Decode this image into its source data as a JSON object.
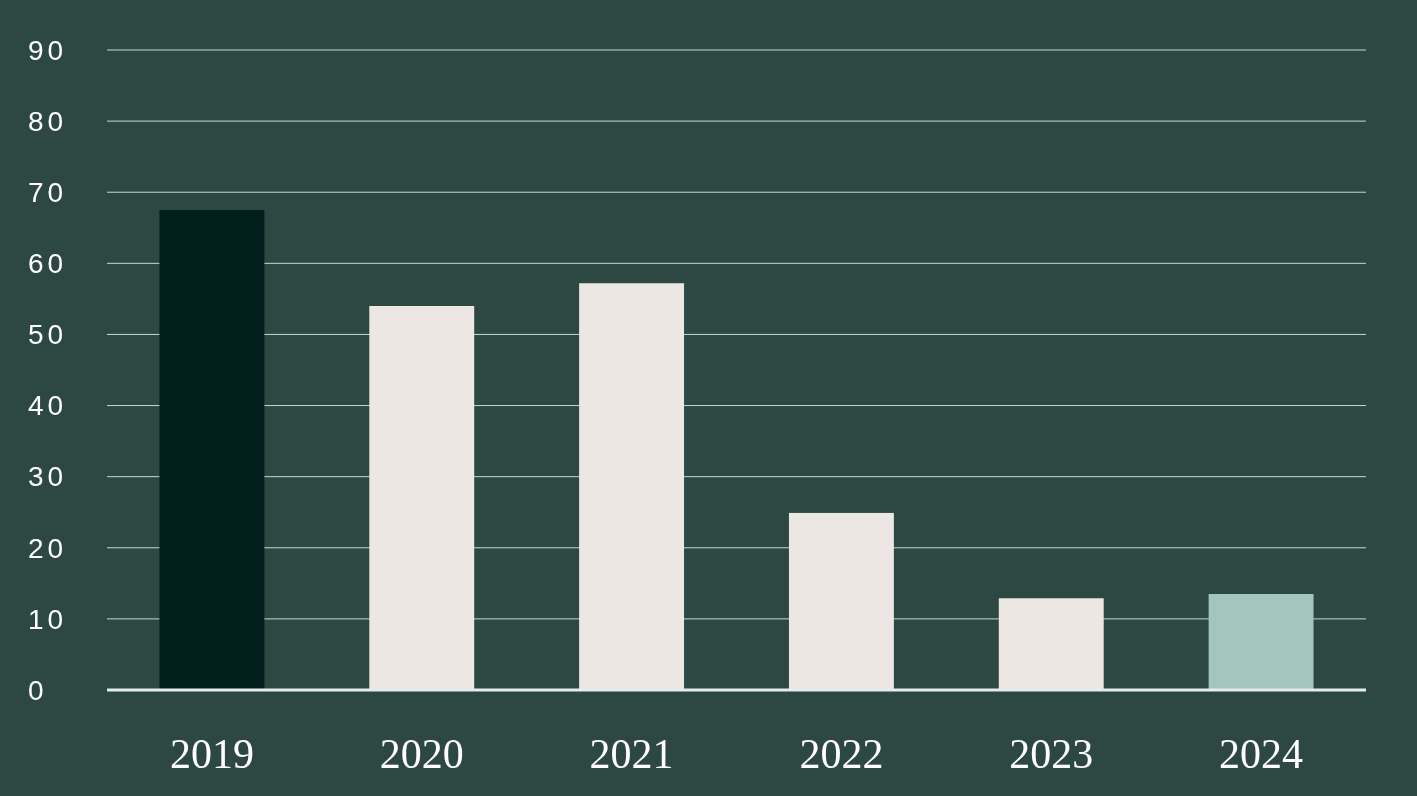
{
  "chart_data": {
    "type": "bar",
    "categories": [
      "2019",
      "2020",
      "2021",
      "2022",
      "2023",
      "2024"
    ],
    "values": [
      67.5,
      54,
      57.2,
      24.9,
      12.9,
      13.5
    ],
    "colors": [
      "#011e1d",
      "#ede7e3",
      "#ede7e3",
      "#ede7e3",
      "#ede7e3",
      "#a3c5bd"
    ],
    "ylim": [
      0,
      90
    ],
    "yticks": [
      0,
      10,
      20,
      30,
      40,
      50,
      60,
      70,
      80,
      90
    ],
    "grid": "y"
  }
}
